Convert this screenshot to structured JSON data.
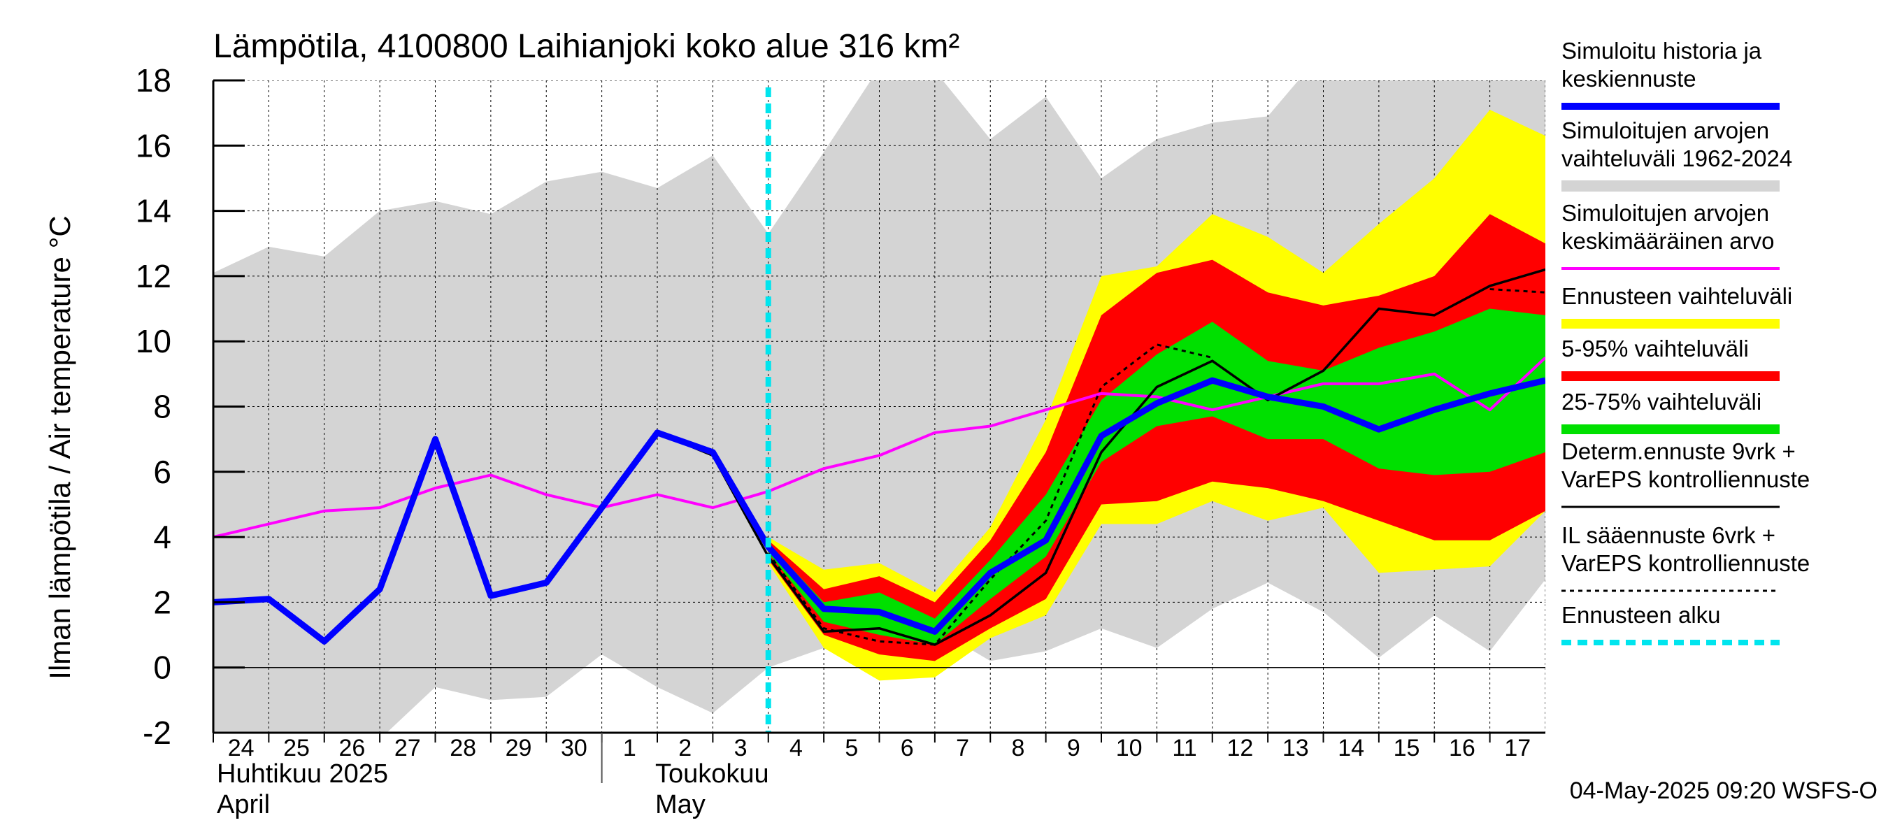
{
  "colors": {
    "range_hist": "#d4d4d4",
    "forecast_range": "#ffff00",
    "p5_95": "#ff0000",
    "p25_75": "#00e000",
    "simulated": "#0000ff",
    "mean": "#ff00ff",
    "deterministic": "#000000",
    "il_forecast": "#000000",
    "forecast_start": "#00e5ee",
    "grid": "#000000"
  },
  "chart_data": {
    "type": "line",
    "title": "Lämpötila, 4100800 Laihianjoki koko alue 316 km²",
    "ylabel": "Ilman lämpötila / Air temperature   °C",
    "ylim": [
      -2,
      18
    ],
    "yticks": [
      -2,
      0,
      2,
      4,
      6,
      8,
      10,
      12,
      14,
      16,
      18
    ],
    "x_days": [
      0,
      1,
      2,
      3,
      4,
      5,
      6,
      7,
      8,
      9,
      10,
      11,
      12,
      13,
      14,
      15,
      16,
      17,
      18,
      19,
      20,
      21,
      22,
      23,
      24
    ],
    "x_tick_labels": [
      "24",
      "25",
      "26",
      "27",
      "28",
      "29",
      "30",
      "1",
      "2",
      "3",
      "4",
      "5",
      "6",
      "7",
      "8",
      "9",
      "10",
      "11",
      "12",
      "13",
      "14",
      "15",
      "16",
      "17"
    ],
    "month_labels": [
      {
        "fi": "Huhtikuu  2025",
        "en": "April"
      },
      {
        "fi": "Toukokuu",
        "en": "May"
      }
    ],
    "forecast_start_day": 10,
    "timestamp": "04-May-2025 09:20 WSFS-O",
    "series": [
      {
        "name": "Simuloitujen arvojen vaihteluväli 1962-2024 (max)",
        "values": [
          12.1,
          12.9,
          12.6,
          14.0,
          14.3,
          13.9,
          14.9,
          15.2,
          14.7,
          15.7,
          13.3,
          15.8,
          18.4,
          18.3,
          16.2,
          17.5,
          15.0,
          16.2,
          16.7,
          16.9,
          18.9,
          18.9,
          18.9,
          18.9,
          18.9
        ]
      },
      {
        "name": "Simuloitujen arvojen vaihteluväli 1962-2024 (min)",
        "values": [
          -2.3,
          -2.3,
          -2.3,
          -2.2,
          -0.6,
          -1.0,
          -0.9,
          0.4,
          -0.6,
          -1.4,
          0.0,
          0.6,
          0.5,
          1.2,
          0.2,
          0.5,
          1.2,
          0.6,
          1.8,
          2.6,
          1.7,
          0.3,
          1.6,
          0.5,
          2.7
        ]
      },
      {
        "name": "Ennusteen vaihteluväli (max)",
        "values": [
          null,
          null,
          null,
          null,
          null,
          null,
          null,
          null,
          null,
          null,
          4.0,
          3.0,
          3.2,
          2.3,
          4.3,
          7.6,
          12.0,
          12.3,
          13.9,
          13.2,
          12.1,
          13.6,
          15.0,
          17.1,
          16.3
        ]
      },
      {
        "name": "Ennusteen vaihteluväli (min)",
        "values": [
          null,
          null,
          null,
          null,
          null,
          null,
          null,
          null,
          null,
          null,
          3.2,
          0.6,
          -0.4,
          -0.3,
          0.9,
          1.6,
          4.4,
          4.4,
          5.1,
          4.5,
          4.9,
          2.9,
          3.0,
          3.1,
          4.8
        ]
      },
      {
        "name": "5-95% vaihteluväli (max)",
        "values": [
          null,
          null,
          null,
          null,
          null,
          null,
          null,
          null,
          null,
          null,
          3.9,
          2.4,
          2.8,
          2.0,
          3.9,
          6.6,
          10.8,
          12.1,
          12.5,
          11.5,
          11.1,
          11.4,
          12.0,
          13.9,
          13.0
        ]
      },
      {
        "name": "5-95% vaihteluväli (min)",
        "values": [
          null,
          null,
          null,
          null,
          null,
          null,
          null,
          null,
          null,
          null,
          3.3,
          1.0,
          0.4,
          0.2,
          1.2,
          2.1,
          5.0,
          5.1,
          5.7,
          5.5,
          5.1,
          4.5,
          3.9,
          3.9,
          4.8
        ]
      },
      {
        "name": "25-75% vaihteluväli (max)",
        "values": [
          null,
          null,
          null,
          null,
          null,
          null,
          null,
          null,
          null,
          null,
          3.8,
          2.0,
          2.3,
          1.5,
          3.3,
          5.3,
          8.2,
          9.6,
          10.6,
          9.4,
          9.1,
          9.8,
          10.3,
          11.0,
          10.8
        ]
      },
      {
        "name": "25-75% vaihteluväli (min)",
        "values": [
          null,
          null,
          null,
          null,
          null,
          null,
          null,
          null,
          null,
          null,
          3.5,
          1.4,
          1.0,
          0.7,
          2.1,
          3.4,
          6.3,
          7.4,
          7.7,
          7.0,
          7.0,
          6.1,
          5.9,
          6.0,
          6.6
        ]
      },
      {
        "name": "Simuloitu historia ja keskiennuste",
        "values": [
          2.0,
          2.1,
          0.8,
          2.4,
          7.0,
          2.2,
          2.6,
          4.9,
          7.2,
          6.6,
          3.7,
          1.8,
          1.7,
          1.1,
          2.9,
          3.9,
          7.1,
          8.1,
          8.8,
          8.3,
          8.0,
          7.3,
          7.9,
          8.4,
          8.8
        ]
      },
      {
        "name": "Simuloitujen arvojen keskimääräinen arvo",
        "values": [
          4.0,
          4.4,
          4.8,
          4.9,
          5.5,
          5.9,
          5.3,
          4.9,
          5.3,
          4.9,
          5.4,
          6.1,
          6.5,
          7.2,
          7.4,
          7.9,
          8.4,
          8.3,
          7.9,
          8.3,
          8.7,
          8.7,
          9.0,
          7.9,
          9.5
        ]
      },
      {
        "name": "Determ.ennuste 9vrk + VarEPS kontrolliennuste",
        "values": [
          null,
          null,
          null,
          null,
          null,
          null,
          null,
          null,
          7.2,
          6.5,
          3.4,
          1.1,
          1.2,
          0.7,
          1.6,
          2.9,
          6.6,
          8.6,
          9.4,
          8.2,
          9.1,
          11.0,
          10.8,
          11.7,
          12.2
        ]
      },
      {
        "name": "IL sääennuste 6vrk + VarEPS kontrolliennuste",
        "values": [
          null,
          null,
          null,
          null,
          null,
          null,
          null,
          null,
          null,
          null,
          3.5,
          1.2,
          0.8,
          0.7,
          2.7,
          4.5,
          8.6,
          9.9,
          9.5,
          null,
          null,
          null,
          null,
          11.6,
          11.5
        ]
      }
    ],
    "legend": [
      {
        "label": [
          "Simuloitu historia ja",
          "keskiennuste"
        ],
        "style": "blue"
      },
      {
        "label": [
          "Simuloitujen arvojen",
          "vaihteluväli 1962-2024"
        ],
        "style": "grey"
      },
      {
        "label": [
          "Simuloitujen arvojen",
          "keskimääräinen arvo"
        ],
        "style": "magenta"
      },
      {
        "label": [
          "Ennusteen vaihteluväli"
        ],
        "style": "yellow"
      },
      {
        "label": [
          "5-95% vaihteluväli"
        ],
        "style": "red"
      },
      {
        "label": [
          "25-75% vaihteluväli"
        ],
        "style": "green"
      },
      {
        "label": [
          "Determ.ennuste 9vrk +",
          "VarEPS kontrolliennuste"
        ],
        "style": "black"
      },
      {
        "label": [
          "IL sääennuste 6vrk  +",
          "  VarEPS kontrolliennuste"
        ],
        "style": "black-dashed"
      },
      {
        "label": [
          "Ennusteen alku"
        ],
        "style": "cyan-dashed"
      }
    ]
  }
}
